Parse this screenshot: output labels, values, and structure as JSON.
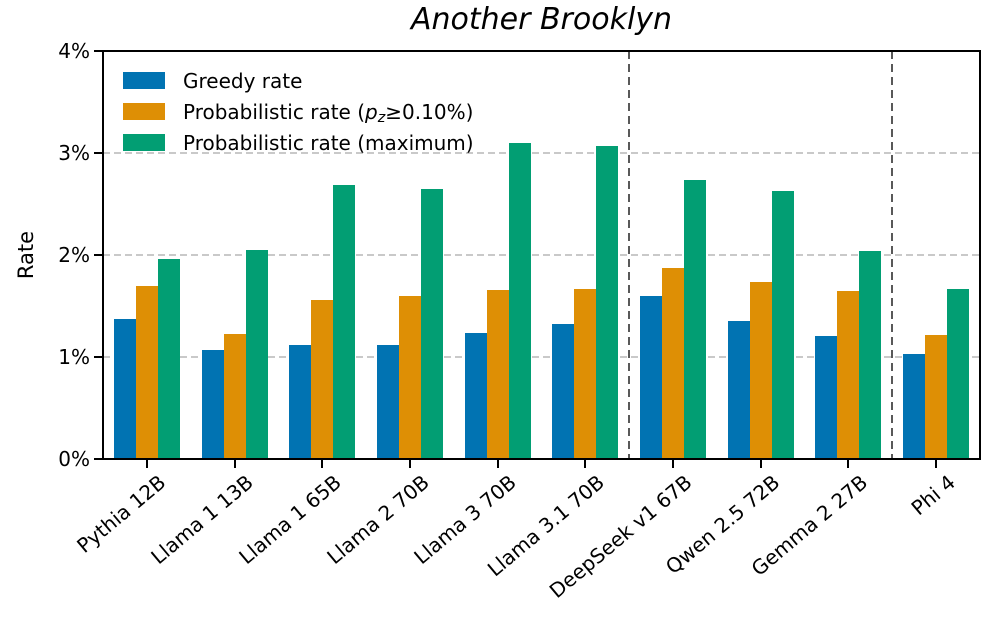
{
  "title": "Another Brooklyn",
  "ylabel": "Rate",
  "legend": {
    "items": [
      {
        "parts": [
          {
            "text": "Greedy rate"
          }
        ]
      },
      {
        "parts": [
          {
            "text": "Probabilistic rate ("
          },
          {
            "text": "p"
          },
          {
            "text": "z"
          },
          {
            "text": "≥0.10%)"
          }
        ]
      },
      {
        "parts": [
          {
            "text": "Probabilistic rate (maximum)"
          }
        ]
      }
    ]
  },
  "chart_data": {
    "type": "bar",
    "title": "Another Brooklyn",
    "xlabel": "",
    "ylabel": "Rate",
    "categories": [
      "Pythia 12B",
      "Llama 1 13B",
      "Llama 1 65B",
      "Llama 2 70B",
      "Llama 3 70B",
      "Llama 3.1 70B",
      "DeepSeek v1 67B",
      "Qwen 2.5 72B",
      "Gemma 2 27B",
      "Phi 4"
    ],
    "series": [
      {
        "name": "Greedy rate",
        "color": "#0173B2",
        "values": [
          1.37,
          1.07,
          1.12,
          1.12,
          1.24,
          1.32,
          1.6,
          1.35,
          1.21,
          1.03
        ]
      },
      {
        "name": "Probabilistic rate (p_z≥0.10%)",
        "color": "#DE8F05",
        "values": [
          1.7,
          1.23,
          1.56,
          1.6,
          1.66,
          1.67,
          1.87,
          1.74,
          1.65,
          1.22
        ]
      },
      {
        "name": "Probabilistic rate (maximum)",
        "color": "#029E73",
        "values": [
          1.96,
          2.05,
          2.69,
          2.65,
          3.1,
          3.07,
          2.74,
          2.63,
          2.04,
          1.67
        ]
      }
    ],
    "ylim": [
      0,
      4
    ],
    "yticks": [
      {
        "value": 0,
        "label": "0%"
      },
      {
        "value": 1,
        "label": "1%"
      },
      {
        "value": 2,
        "label": "2%"
      },
      {
        "value": 3,
        "label": "3%"
      },
      {
        "value": 4,
        "label": "4%"
      }
    ],
    "grid": "horizontal-dashed",
    "legend_position": "upper-left",
    "separators_after_index": [
      5,
      8
    ]
  }
}
